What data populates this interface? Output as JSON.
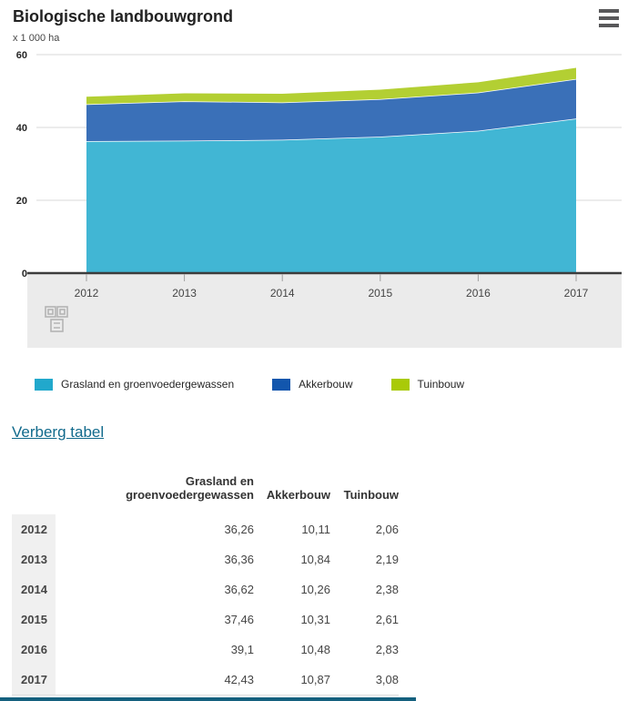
{
  "header": {
    "title": "Biologische landbouwgrond",
    "unit_label": "x 1 000 ha"
  },
  "chart_data": {
    "type": "area",
    "stacked": true,
    "title": "Biologische landbouwgrond",
    "ylabel": "x 1 000 ha",
    "x": [
      2012,
      2013,
      2014,
      2015,
      2016,
      2017
    ],
    "series": [
      {
        "name": "Grasland en groenvoedergewassen",
        "values": [
          36.26,
          36.36,
          36.62,
          37.46,
          39.1,
          42.43
        ],
        "area_color": "#41b6d4",
        "legend_color": "#21a8cc"
      },
      {
        "name": "Akkerbouw",
        "values": [
          10.11,
          10.84,
          10.26,
          10.31,
          10.48,
          10.87
        ],
        "area_color": "#3a70b8",
        "legend_color": "#1256ad"
      },
      {
        "name": "Tuinbouw",
        "values": [
          2.06,
          2.19,
          2.38,
          2.61,
          2.83,
          3.08
        ],
        "area_color": "#b3cf33",
        "legend_color": "#a9ca08"
      }
    ],
    "ylim": [
      0,
      60
    ],
    "yticks": [
      0,
      20,
      40,
      60
    ],
    "grid": true,
    "legend_position": "bottom",
    "colors": {
      "gridline": "#d9d9d9",
      "axis": "#3c3c3c",
      "axis_band": "#ebebeb",
      "tick": "#a0a0a0",
      "tick_label": "#454545"
    }
  },
  "link": {
    "label": "Verberg tabel"
  },
  "table": {
    "columns": [
      "Grasland en groenvoedergewassen",
      "Akkerbouw",
      "Tuinbouw"
    ],
    "rows": [
      {
        "year": "2012",
        "values": [
          "36,26",
          "10,11",
          "2,06"
        ]
      },
      {
        "year": "2013",
        "values": [
          "36,36",
          "10,84",
          "2,19"
        ]
      },
      {
        "year": "2014",
        "values": [
          "36,62",
          "10,26",
          "2,38"
        ]
      },
      {
        "year": "2015",
        "values": [
          "37,46",
          "10,31",
          "2,61"
        ]
      },
      {
        "year": "2016",
        "values": [
          "39,1",
          "10,48",
          "2,83"
        ]
      },
      {
        "year": "2017",
        "values": [
          "42,43",
          "10,87",
          "3,08"
        ]
      }
    ]
  }
}
